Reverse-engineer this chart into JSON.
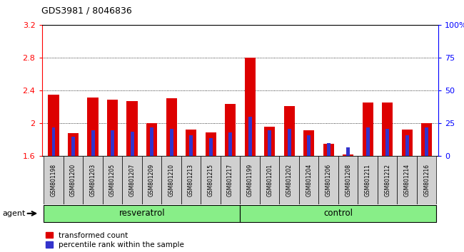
{
  "title": "GDS3981 / 8046836",
  "samples": [
    "GSM801198",
    "GSM801200",
    "GSM801203",
    "GSM801205",
    "GSM801207",
    "GSM801209",
    "GSM801210",
    "GSM801213",
    "GSM801215",
    "GSM801217",
    "GSM801199",
    "GSM801201",
    "GSM801202",
    "GSM801204",
    "GSM801206",
    "GSM801208",
    "GSM801211",
    "GSM801212",
    "GSM801214",
    "GSM801216"
  ],
  "transformed_count": [
    2.35,
    1.88,
    2.32,
    2.29,
    2.27,
    2.0,
    2.31,
    1.93,
    1.89,
    2.24,
    2.8,
    1.96,
    2.21,
    1.92,
    1.75,
    1.62,
    2.26,
    2.26,
    1.93,
    2.0
  ],
  "percentile_rank": [
    22,
    15,
    20,
    20,
    19,
    22,
    21,
    16,
    14,
    18,
    30,
    20,
    21,
    16,
    10,
    7,
    22,
    21,
    16,
    22
  ],
  "groups": [
    "resveratrol",
    "resveratrol",
    "resveratrol",
    "resveratrol",
    "resveratrol",
    "resveratrol",
    "resveratrol",
    "resveratrol",
    "resveratrol",
    "resveratrol",
    "control",
    "control",
    "control",
    "control",
    "control",
    "control",
    "control",
    "control",
    "control",
    "control"
  ],
  "resveratrol_label": "resveratrol",
  "control_label": "control",
  "agent_label": "agent",
  "ymin": 1.6,
  "ymax": 3.2,
  "yticks_left": [
    1.6,
    2.0,
    2.4,
    2.8,
    3.2
  ],
  "ytick_labels_left": [
    "1.6",
    "2",
    "2.4",
    "2.8",
    "3.2"
  ],
  "right_ytick_labels": [
    "0",
    "25",
    "50",
    "75",
    "100%"
  ],
  "bar_color": "#dd0000",
  "blue_color": "#3333cc",
  "cell_bg": "#d0d0d0",
  "plot_bg": "#ffffff",
  "green_bg": "#88ee88",
  "legend_red_label": "transformed count",
  "legend_blue_label": "percentile rank within the sample",
  "red_bar_width": 0.55,
  "blue_bar_width": 0.18,
  "percentile_scale_max": 100
}
